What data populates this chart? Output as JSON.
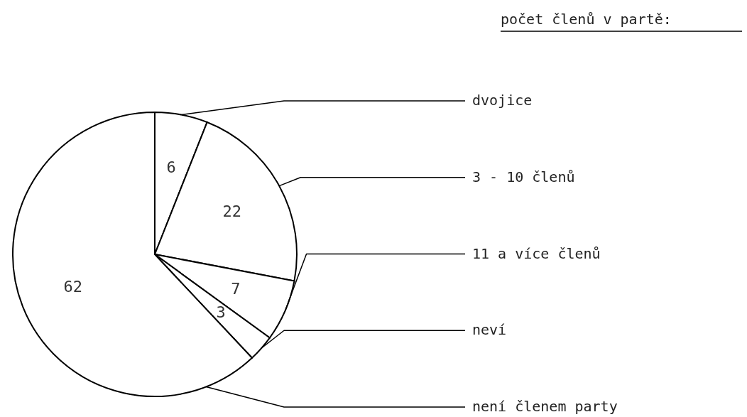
{
  "chart_data": {
    "type": "pie",
    "title": "počet členů v partě:",
    "categories": [
      "dvojice",
      "3 - 10 členů",
      "11 a více členů",
      "neví",
      "není členem party"
    ],
    "values": [
      6,
      22,
      7,
      3,
      62
    ],
    "colors": [
      "#ffffff",
      "#ffffff",
      "#ffffff",
      "#ffffff",
      "#ffffff"
    ],
    "data_labels": true
  }
}
